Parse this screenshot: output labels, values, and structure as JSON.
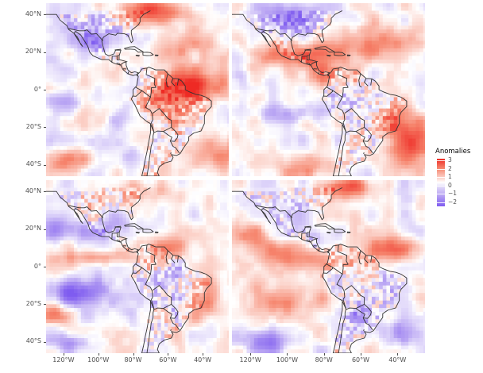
{
  "map": {
    "panels": [
      {
        "id": "top-left",
        "pattern": "warm-atlantic"
      },
      {
        "id": "top-right",
        "pattern": "warm-south"
      },
      {
        "id": "bottom-left",
        "pattern": "cool-pacific"
      },
      {
        "id": "bottom-right",
        "pattern": "mixed"
      }
    ],
    "y_ticks": [
      "40°N",
      "20°N",
      "0°",
      "20°S",
      "40°S"
    ],
    "x_ticks": [
      "120°W",
      "100°W",
      "80°W",
      "60°W",
      "40°W"
    ],
    "colors": {
      "positive_max": "#ee2a24",
      "positive_mid": "#f6866e",
      "zero": "#ffffff",
      "negative_mid": "#b6a1f3",
      "negative_max": "#7f5cf0",
      "coastline": "#333333",
      "grid_gap": "#ffffff"
    }
  },
  "legend": {
    "title": "Anomalies",
    "labels": [
      "3",
      "2",
      "1",
      "0",
      "−1",
      "−2"
    ],
    "range": [
      -2.5,
      3.2
    ]
  }
}
